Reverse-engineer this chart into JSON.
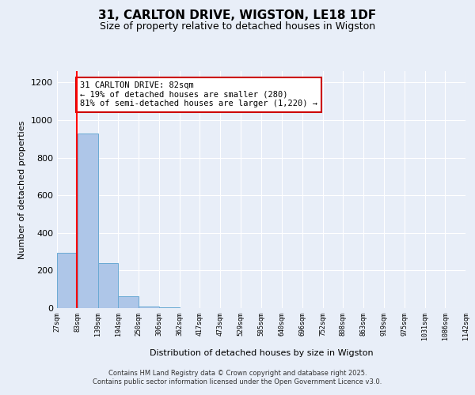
{
  "title": "31, CARLTON DRIVE, WIGSTON, LE18 1DF",
  "subtitle": "Size of property relative to detached houses in Wigston",
  "xlabel": "Distribution of detached houses by size in Wigston",
  "ylabel": "Number of detached properties",
  "bar_edges": [
    27,
    83,
    139,
    194,
    250,
    306,
    362,
    417,
    473,
    529,
    585,
    640,
    696,
    752,
    808,
    863,
    919,
    975,
    1031,
    1086,
    1142
  ],
  "bar_heights": [
    295,
    930,
    240,
    65,
    10,
    5,
    2,
    1,
    1,
    1,
    0,
    0,
    0,
    0,
    0,
    0,
    0,
    0,
    0,
    0
  ],
  "bar_color": "#aec6e8",
  "bar_edgecolor": "#6aaad4",
  "background_color": "#e8eef8",
  "grid_color": "#ffffff",
  "red_line_x": 82,
  "annotation_text": "31 CARLTON DRIVE: 82sqm\n← 19% of detached houses are smaller (280)\n81% of semi-detached houses are larger (1,220) →",
  "annotation_box_color": "#ffffff",
  "annotation_box_edgecolor": "#cc0000",
  "ylim": [
    0,
    1260
  ],
  "yticks": [
    0,
    200,
    400,
    600,
    800,
    1000,
    1200
  ],
  "footer_text": "Contains HM Land Registry data © Crown copyright and database right 2025.\nContains public sector information licensed under the Open Government Licence v3.0.",
  "tick_labels": [
    "27sqm",
    "83sqm",
    "139sqm",
    "194sqm",
    "250sqm",
    "306sqm",
    "362sqm",
    "417sqm",
    "473sqm",
    "529sqm",
    "585sqm",
    "640sqm",
    "696sqm",
    "752sqm",
    "808sqm",
    "863sqm",
    "919sqm",
    "975sqm",
    "1031sqm",
    "1086sqm",
    "1142sqm"
  ]
}
